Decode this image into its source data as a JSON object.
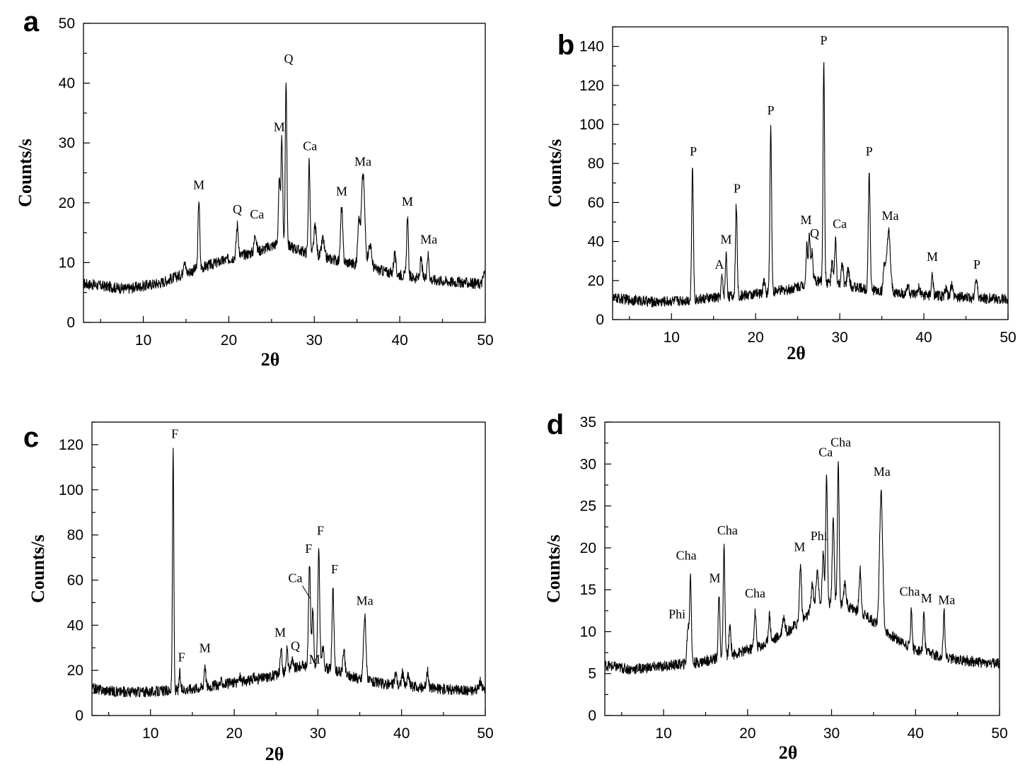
{
  "chart_data": [
    {
      "panel": "a",
      "type": "line",
      "xlabel": "2θ",
      "ylabel": "Counts/s",
      "xlim": [
        3,
        50
      ],
      "ylim": [
        0,
        50
      ],
      "xticks": [
        10,
        20,
        30,
        40,
        50
      ],
      "yticks": [
        0,
        10,
        20,
        30,
        40,
        50
      ],
      "baseline": [
        [
          3,
          6.5
        ],
        [
          8,
          5.6
        ],
        [
          12,
          6.6
        ],
        [
          16,
          8.8
        ],
        [
          20,
          10.6
        ],
        [
          24,
          12.2
        ],
        [
          26,
          13.4
        ],
        [
          28,
          12.2
        ],
        [
          30,
          11.2
        ],
        [
          34,
          10
        ],
        [
          38,
          8.6
        ],
        [
          42,
          7.4
        ],
        [
          46,
          6.8
        ],
        [
          50,
          6.4
        ]
      ],
      "peaks": [
        {
          "x": 14.8,
          "y": 10.5,
          "w": 0.12
        },
        {
          "x": 16.5,
          "y": 20.6,
          "w": 0.1
        },
        {
          "x": 21,
          "y": 16.3,
          "w": 0.12
        },
        {
          "x": 23.1,
          "y": 15,
          "w": 0.12
        },
        {
          "x": 25.9,
          "y": 23.5,
          "w": 0.1
        },
        {
          "x": 26.2,
          "y": 30.3,
          "w": 0.1
        },
        {
          "x": 26.7,
          "y": 40.6,
          "w": 0.09
        },
        {
          "x": 29.4,
          "y": 27,
          "w": 0.1
        },
        {
          "x": 30.1,
          "y": 16,
          "w": 0.15
        },
        {
          "x": 31,
          "y": 14,
          "w": 0.15
        },
        {
          "x": 33.2,
          "y": 19.3,
          "w": 0.12
        },
        {
          "x": 35.2,
          "y": 17.5,
          "w": 0.12
        },
        {
          "x": 35.7,
          "y": 24.7,
          "w": 0.2
        },
        {
          "x": 36.5,
          "y": 13,
          "w": 0.2
        },
        {
          "x": 39.4,
          "y": 11.5,
          "w": 0.12
        },
        {
          "x": 40.9,
          "y": 17.5,
          "w": 0.1
        },
        {
          "x": 42.5,
          "y": 10.5,
          "w": 0.12
        },
        {
          "x": 43.3,
          "y": 11.3,
          "w": 0.12
        },
        {
          "x": 49.9,
          "y": 8.3,
          "w": 0.15
        }
      ],
      "annotations": [
        {
          "text": "M",
          "x": 16.5,
          "y": 22.3
        },
        {
          "text": "Q",
          "x": 21,
          "y": 18.2
        },
        {
          "text": "Ca",
          "x": 23.3,
          "y": 17.4
        },
        {
          "text": "M",
          "x": 25.9,
          "y": 32
        },
        {
          "text": "Q",
          "x": 27,
          "y": 43.4
        },
        {
          "text": "Ca",
          "x": 29.5,
          "y": 28.8
        },
        {
          "text": "M",
          "x": 33.2,
          "y": 21.2
        },
        {
          "text": "Ma",
          "x": 35.7,
          "y": 26.2
        },
        {
          "text": "M",
          "x": 40.9,
          "y": 19.5
        },
        {
          "text": "Ma",
          "x": 43.4,
          "y": 13.2
        }
      ]
    },
    {
      "panel": "b",
      "type": "line",
      "xlabel": "2θ",
      "ylabel": "Counts/s",
      "xlim": [
        3,
        50
      ],
      "ylim": [
        0,
        150
      ],
      "xticks": [
        10,
        20,
        30,
        40,
        50
      ],
      "yticks": [
        0,
        20,
        40,
        60,
        80,
        100,
        120,
        140
      ],
      "baseline": [
        [
          3,
          11
        ],
        [
          8,
          9
        ],
        [
          12,
          10
        ],
        [
          16,
          11.5
        ],
        [
          20,
          13
        ],
        [
          24,
          15.5
        ],
        [
          27,
          20
        ],
        [
          30,
          18
        ],
        [
          34,
          15
        ],
        [
          38,
          13
        ],
        [
          42,
          12
        ],
        [
          46,
          11
        ],
        [
          50,
          10.5
        ]
      ],
      "peaks": [
        {
          "x": 12.5,
          "y": 78,
          "w": 0.1
        },
        {
          "x": 16,
          "y": 22,
          "w": 0.1
        },
        {
          "x": 16.5,
          "y": 33,
          "w": 0.1
        },
        {
          "x": 17.7,
          "y": 59,
          "w": 0.1
        },
        {
          "x": 21,
          "y": 21,
          "w": 0.1
        },
        {
          "x": 21.8,
          "y": 99,
          "w": 0.1
        },
        {
          "x": 26.1,
          "y": 38,
          "w": 0.1
        },
        {
          "x": 26.4,
          "y": 43,
          "w": 0.1
        },
        {
          "x": 26.7,
          "y": 35,
          "w": 0.1
        },
        {
          "x": 28.1,
          "y": 134,
          "w": 0.09
        },
        {
          "x": 29.1,
          "y": 29,
          "w": 0.1
        },
        {
          "x": 29.5,
          "y": 41,
          "w": 0.1
        },
        {
          "x": 30.3,
          "y": 28,
          "w": 0.12
        },
        {
          "x": 31,
          "y": 26,
          "w": 0.12
        },
        {
          "x": 33.5,
          "y": 77,
          "w": 0.11
        },
        {
          "x": 35.3,
          "y": 28,
          "w": 0.12
        },
        {
          "x": 35.8,
          "y": 45,
          "w": 0.2
        },
        {
          "x": 38.1,
          "y": 18,
          "w": 0.12
        },
        {
          "x": 39.4,
          "y": 16,
          "w": 0.12
        },
        {
          "x": 41,
          "y": 23,
          "w": 0.1
        },
        {
          "x": 42.6,
          "y": 16,
          "w": 0.12
        },
        {
          "x": 43.3,
          "y": 18,
          "w": 0.12
        },
        {
          "x": 46.2,
          "y": 20,
          "w": 0.15
        }
      ],
      "annotations": [
        {
          "text": "P",
          "x": 12.6,
          "y": 84
        },
        {
          "text": "A",
          "x": 15.7,
          "y": 26
        },
        {
          "text": "M",
          "x": 16.5,
          "y": 39
        },
        {
          "text": "P",
          "x": 17.8,
          "y": 65
        },
        {
          "text": "P",
          "x": 21.8,
          "y": 105
        },
        {
          "text": "M",
          "x": 26,
          "y": 49
        },
        {
          "text": "Q",
          "x": 27,
          "y": 42
        },
        {
          "text": "P",
          "x": 28.1,
          "y": 141
        },
        {
          "text": "Ca",
          "x": 30,
          "y": 47
        },
        {
          "text": "P",
          "x": 33.5,
          "y": 84
        },
        {
          "text": "Ma",
          "x": 36,
          "y": 51
        },
        {
          "text": "M",
          "x": 41,
          "y": 30
        },
        {
          "text": "P",
          "x": 46.3,
          "y": 26
        }
      ]
    },
    {
      "panel": "c",
      "type": "line",
      "xlabel": "2θ",
      "ylabel": "Counts/s",
      "xlim": [
        3,
        50
      ],
      "ylim": [
        0,
        130
      ],
      "xticks": [
        10,
        20,
        30,
        40,
        50
      ],
      "yticks": [
        0,
        20,
        40,
        60,
        80,
        100,
        120
      ],
      "baseline": [
        [
          3,
          12
        ],
        [
          6,
          10.5
        ],
        [
          10,
          10.5
        ],
        [
          14,
          11.5
        ],
        [
          18,
          13.5
        ],
        [
          22,
          15.5
        ],
        [
          25,
          18
        ],
        [
          28,
          22
        ],
        [
          30,
          22
        ],
        [
          32,
          20
        ],
        [
          35,
          16
        ],
        [
          38,
          14
        ],
        [
          42,
          12.5
        ],
        [
          46,
          11.5
        ],
        [
          50,
          11
        ]
      ],
      "peaks": [
        {
          "x": 12.7,
          "y": 118,
          "w": 0.08
        },
        {
          "x": 13.5,
          "y": 19,
          "w": 0.08
        },
        {
          "x": 16.5,
          "y": 23,
          "w": 0.1
        },
        {
          "x": 18.5,
          "y": 15,
          "w": 0.12
        },
        {
          "x": 20.7,
          "y": 17,
          "w": 0.12
        },
        {
          "x": 22.4,
          "y": 17,
          "w": 0.12
        },
        {
          "x": 25.6,
          "y": 29,
          "w": 0.1
        },
        {
          "x": 26.3,
          "y": 30,
          "w": 0.1
        },
        {
          "x": 26.9,
          "y": 25,
          "w": 0.12
        },
        {
          "x": 29,
          "y": 67,
          "w": 0.12
        },
        {
          "x": 29.4,
          "y": 48,
          "w": 0.1
        },
        {
          "x": 30.1,
          "y": 73,
          "w": 0.11
        },
        {
          "x": 30.6,
          "y": 30,
          "w": 0.12
        },
        {
          "x": 31.8,
          "y": 57,
          "w": 0.11
        },
        {
          "x": 33.1,
          "y": 29,
          "w": 0.12
        },
        {
          "x": 35.6,
          "y": 44,
          "w": 0.15
        },
        {
          "x": 39.3,
          "y": 19,
          "w": 0.12
        },
        {
          "x": 40.1,
          "y": 19,
          "w": 0.12
        },
        {
          "x": 40.8,
          "y": 18,
          "w": 0.12
        },
        {
          "x": 43.1,
          "y": 20,
          "w": 0.12
        },
        {
          "x": 49.4,
          "y": 15,
          "w": 0.15
        }
      ],
      "annotations": [
        {
          "text": "F",
          "x": 12.9,
          "y": 123
        },
        {
          "text": "F",
          "x": 13.7,
          "y": 24
        },
        {
          "text": "M",
          "x": 16.5,
          "y": 28
        },
        {
          "text": "M",
          "x": 25.5,
          "y": 35
        },
        {
          "text": "Q",
          "x": 27.3,
          "y": 29
        },
        {
          "text": "Ca",
          "x": 27.3,
          "y": 59
        },
        {
          "text": "M",
          "x": 29.6,
          "y": 23
        },
        {
          "text": "F",
          "x": 28.9,
          "y": 72
        },
        {
          "text": "F",
          "x": 30.3,
          "y": 80
        },
        {
          "text": "F",
          "x": 32,
          "y": 63
        },
        {
          "text": "Ma",
          "x": 35.6,
          "y": 49
        }
      ],
      "leader_line": {
        "from": [
          28.15,
          57.5
        ],
        "to": [
          29.05,
          52
        ]
      }
    },
    {
      "panel": "d",
      "type": "line",
      "xlabel": "2θ",
      "ylabel": "Counts/s",
      "xlim": [
        3,
        50
      ],
      "ylim": [
        0,
        35
      ],
      "xticks": [
        10,
        20,
        30,
        40,
        50
      ],
      "yticks": [
        0,
        5,
        10,
        15,
        20,
        25,
        30,
        35
      ],
      "baseline": [
        [
          3,
          6
        ],
        [
          6,
          5.5
        ],
        [
          10,
          5.9
        ],
        [
          14,
          6.3
        ],
        [
          18,
          7.2
        ],
        [
          22,
          8.4
        ],
        [
          25,
          10.2
        ],
        [
          28,
          12.6
        ],
        [
          30,
          13.5
        ],
        [
          32,
          13
        ],
        [
          34,
          12
        ],
        [
          37,
          9.6
        ],
        [
          40,
          7.8
        ],
        [
          44,
          6.8
        ],
        [
          48,
          6.3
        ],
        [
          50,
          6.2
        ]
      ],
      "peaks": [
        {
          "x": 12.9,
          "y": 10.5,
          "w": 0.12
        },
        {
          "x": 13.2,
          "y": 16.8,
          "w": 0.1
        },
        {
          "x": 16.6,
          "y": 14.3,
          "w": 0.1
        },
        {
          "x": 17.2,
          "y": 19.9,
          "w": 0.1
        },
        {
          "x": 17.9,
          "y": 10.5,
          "w": 0.12
        },
        {
          "x": 20.9,
          "y": 12.3,
          "w": 0.12
        },
        {
          "x": 22.6,
          "y": 12,
          "w": 0.12
        },
        {
          "x": 24.3,
          "y": 11.8,
          "w": 0.15
        },
        {
          "x": 26.3,
          "y": 17.9,
          "w": 0.12
        },
        {
          "x": 27.7,
          "y": 15.5,
          "w": 0.15
        },
        {
          "x": 28.3,
          "y": 17.3,
          "w": 0.15
        },
        {
          "x": 29,
          "y": 19.2,
          "w": 0.12
        },
        {
          "x": 29.4,
          "y": 29.2,
          "w": 0.1
        },
        {
          "x": 30.2,
          "y": 23,
          "w": 0.12
        },
        {
          "x": 30.8,
          "y": 30.4,
          "w": 0.1
        },
        {
          "x": 31.6,
          "y": 16,
          "w": 0.12
        },
        {
          "x": 33.4,
          "y": 17.3,
          "w": 0.12
        },
        {
          "x": 35.9,
          "y": 26.8,
          "w": 0.18
        },
        {
          "x": 39.5,
          "y": 12.5,
          "w": 0.1
        },
        {
          "x": 41,
          "y": 12,
          "w": 0.1
        },
        {
          "x": 43.4,
          "y": 12.3,
          "w": 0.1
        }
      ],
      "annotations": [
        {
          "text": "Phi",
          "x": 11.6,
          "y": 11.6
        },
        {
          "text": "Cha",
          "x": 12.7,
          "y": 18.6
        },
        {
          "text": "M",
          "x": 16.1,
          "y": 15.9
        },
        {
          "text": "Cha",
          "x": 17.6,
          "y": 21.6
        },
        {
          "text": "Cha",
          "x": 20.9,
          "y": 14.1
        },
        {
          "text": "M",
          "x": 26.2,
          "y": 19.6
        },
        {
          "text": "Phi",
          "x": 28.5,
          "y": 20.9
        },
        {
          "text": "Ca",
          "x": 29.3,
          "y": 30.9
        },
        {
          "text": "Cha",
          "x": 31.1,
          "y": 32.1
        },
        {
          "text": "Ma",
          "x": 36,
          "y": 28.6
        },
        {
          "text": "Cha",
          "x": 39.3,
          "y": 14.3
        },
        {
          "text": "M",
          "x": 41.3,
          "y": 13.5
        },
        {
          "text": "Ma",
          "x": 43.7,
          "y": 13.3
        }
      ]
    }
  ]
}
